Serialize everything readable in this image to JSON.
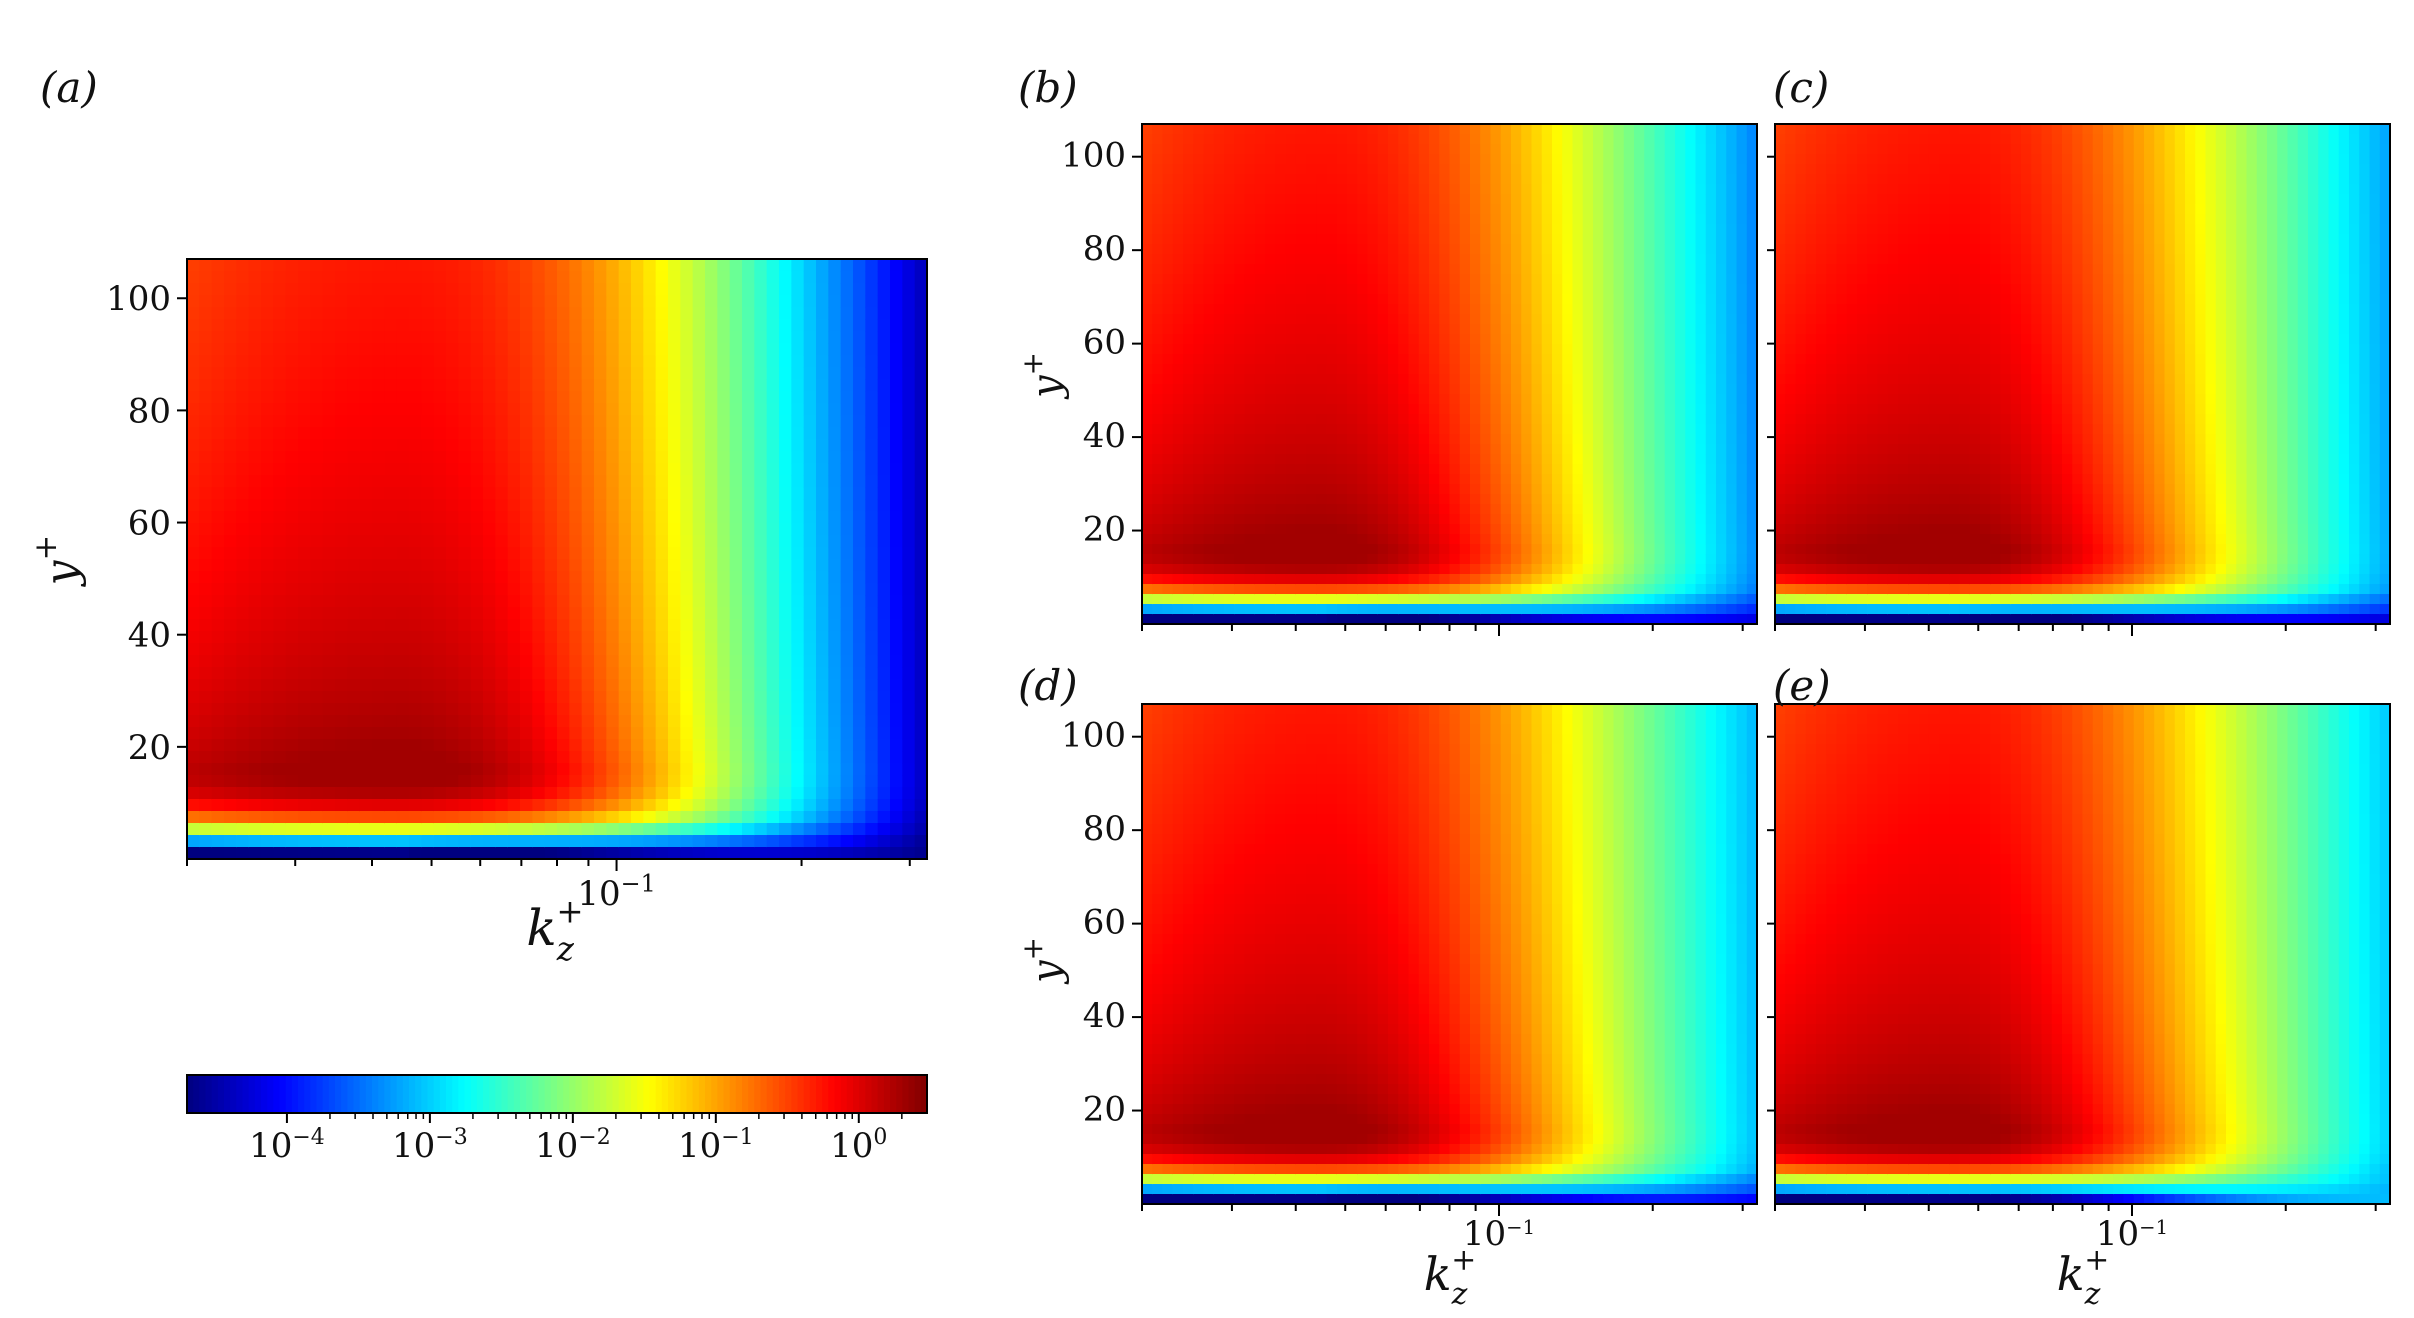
{
  "chart_data": [
    {
      "panel": "(a)",
      "type": "heatmap",
      "xlabel": "k_z^+",
      "ylabel": "y^+",
      "x_scale": "log",
      "x_tick_labels": [
        "10^-1"
      ],
      "y_ticks": [
        20,
        40,
        60,
        80,
        100
      ],
      "ylim": [
        0,
        107
      ],
      "colormap": "jet",
      "peak": {
        "kz": 0.045,
        "y": 16
      },
      "levels": {
        "left_top": 0.5,
        "right_top": 3e-05,
        "bottom_right": 5e-05
      },
      "colorbar": {
        "scale": "log",
        "range": [
          2e-05,
          3
        ],
        "ticks": [
          0.0001,
          0.001,
          0.01,
          0.1,
          1
        ],
        "tick_labels": [
          "10^-4",
          "10^-3",
          "10^-2",
          "10^-1",
          "10^0"
        ]
      }
    },
    {
      "panel": "(b)",
      "type": "heatmap",
      "ylabel": "y^+",
      "x_scale": "log",
      "y_ticks": [
        20,
        40,
        60,
        80,
        100
      ],
      "ylim": [
        0,
        107
      ],
      "colormap": "jet",
      "peak": {
        "kz": 0.045,
        "y": 16
      },
      "levels": {
        "left_top": 0.5,
        "right_top": 0.0004,
        "bottom_right": 8e-05
      }
    },
    {
      "panel": "(c)",
      "type": "heatmap",
      "x_scale": "log",
      "ylim": [
        0,
        107
      ],
      "colormap": "jet",
      "peak": {
        "kz": 0.045,
        "y": 16
      },
      "levels": {
        "left_top": 0.5,
        "right_top": 0.0006,
        "bottom_right": 6e-05
      }
    },
    {
      "panel": "(d)",
      "type": "heatmap",
      "xlabel": "k_z^+",
      "ylabel": "y^+",
      "x_scale": "log",
      "x_tick_labels": [
        "10^-1"
      ],
      "y_ticks": [
        20,
        40,
        60,
        80,
        100
      ],
      "ylim": [
        0,
        107
      ],
      "colormap": "jet",
      "peak": {
        "kz": 0.045,
        "y": 16
      },
      "levels": {
        "left_top": 0.5,
        "right_top": 0.0008,
        "bottom_right": 0.0001
      }
    },
    {
      "panel": "(e)",
      "type": "heatmap",
      "xlabel": "k_z^+",
      "x_scale": "log",
      "x_tick_labels": [
        "10^-1"
      ],
      "ylim": [
        0,
        107
      ],
      "colormap": "jet",
      "peak": {
        "kz": 0.045,
        "y": 16
      },
      "levels": {
        "left_top": 0.5,
        "right_top": 0.001,
        "bottom_right": 0.002
      }
    }
  ]
}
